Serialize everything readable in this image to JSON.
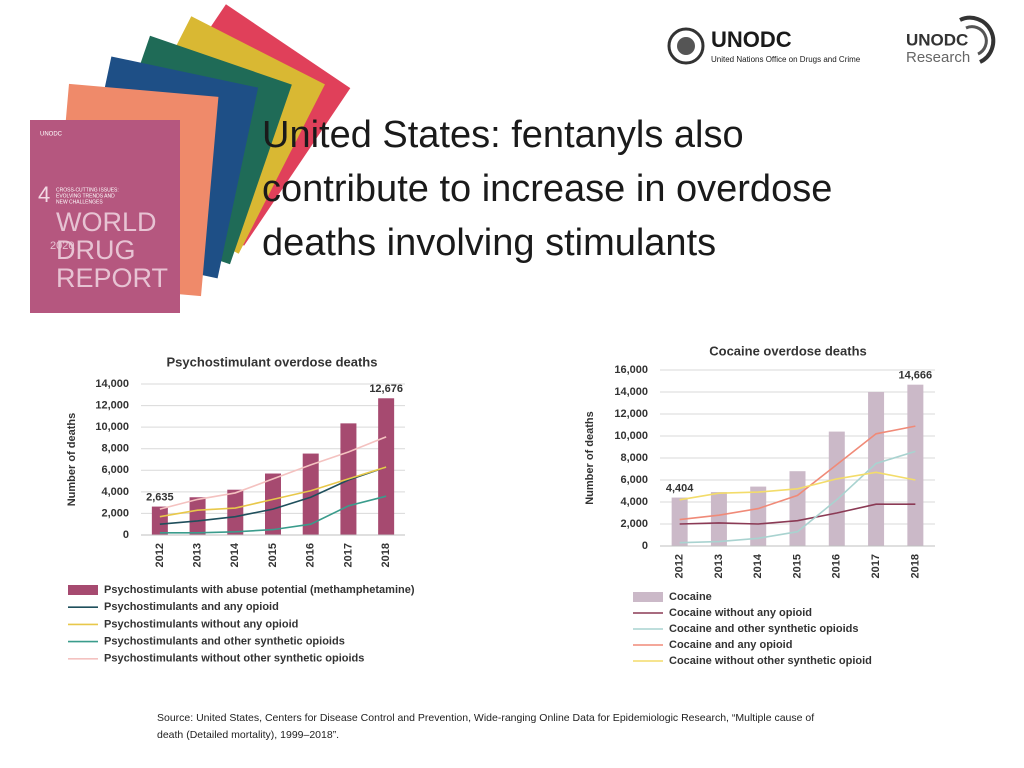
{
  "logos": {
    "unodc": "UNODC",
    "unodc_full": "United Nations Office on Drugs and Crime",
    "research_top": "UNODC",
    "research_bottom": "Research"
  },
  "cover": {
    "number": "4",
    "subtitle": [
      "CROSS-CUTTING ISSUES:",
      "EVOLVING TRENDS AND",
      "NEW CHALLENGES"
    ],
    "year": "2020",
    "title": [
      "WORLD",
      "DRUG",
      "REPORT"
    ],
    "brand": "UNODC"
  },
  "title_lines": [
    "United States: fentanyls also",
    "contribute to increase in overdose",
    "deaths involving stimulants"
  ],
  "source_lines": [
    "Source: United States, Centers for Disease Control and Prevention, Wide-ranging Online Data for Epidemiologic Research, “Multiple cause of",
    "death (Detailed mortality), 1999–2018”."
  ],
  "chart_data": [
    {
      "type": "bar",
      "title": "Psychostimulant overdose deaths",
      "ylabel": "Number of deaths",
      "categories": [
        "2012",
        "2013",
        "2014",
        "2015",
        "2016",
        "2017",
        "2018"
      ],
      "series": [
        {
          "name": "Psychostimulants with abuse potential (methamphetamine)",
          "type": "bar",
          "color": "#a64a70",
          "values": [
            2635,
            3500,
            4200,
            5700,
            7550,
            10350,
            12676
          ],
          "value_labels": [
            "2,635",
            null,
            null,
            null,
            null,
            null,
            "12,676"
          ]
        },
        {
          "name": "Psychostimulants and any opioid",
          "type": "line",
          "color": "#1f4f5c",
          "values": [
            1000,
            1300,
            1700,
            2400,
            3500,
            5100,
            6300
          ]
        },
        {
          "name": "Psychostimulants without any opioid",
          "type": "line",
          "color": "#e8c84a",
          "values": [
            1700,
            2300,
            2500,
            3300,
            4100,
            5200,
            6300
          ]
        },
        {
          "name": "Psychostimulants and other synthetic opioids",
          "type": "line",
          "color": "#3a9c8c",
          "values": [
            200,
            200,
            300,
            500,
            1000,
            2700,
            3600
          ]
        },
        {
          "name": "Psychostimulants without other synthetic opioids",
          "type": "line",
          "color": "#f4c2c0",
          "values": [
            2400,
            3300,
            3900,
            5200,
            6500,
            7700,
            9100
          ]
        }
      ],
      "ylim": [
        0,
        14000
      ],
      "yticks": [
        0,
        {
          "value": 2000,
          "label": "2,000"
        },
        {
          "value": 4000,
          "label": "4,000"
        },
        {
          "value": 6000,
          "label": "6,000"
        },
        {
          "value": 8000,
          "label": "8,000"
        },
        {
          "value": 10000,
          "label": "10,000"
        },
        {
          "value": 12000,
          "label": "12,000"
        },
        {
          "value": 14000,
          "label": "14,000"
        }
      ],
      "grid": true
    },
    {
      "type": "bar",
      "title": "Cocaine overdose deaths",
      "ylabel": "Number of deaths",
      "categories": [
        "2012",
        "2013",
        "2014",
        "2015",
        "2016",
        "2017",
        "2018"
      ],
      "series": [
        {
          "name": "Cocaine",
          "type": "bar",
          "color": "#cbb9c8",
          "values": [
            4404,
            4900,
            5400,
            6800,
            10400,
            14000,
            14666
          ],
          "value_labels": [
            "4,404",
            null,
            null,
            null,
            null,
            null,
            "14,666"
          ]
        },
        {
          "name": "Cocaine without any opioid",
          "type": "line",
          "color": "#8b3a55",
          "values": [
            2000,
            2100,
            2000,
            2300,
            3000,
            3800,
            3800
          ]
        },
        {
          "name": "Cocaine and other synthetic opioids",
          "type": "line",
          "color": "#a9d3d0",
          "values": [
            300,
            400,
            700,
            1300,
            4200,
            7500,
            8600
          ]
        },
        {
          "name": "Cocaine  and any opioid",
          "type": "line",
          "color": "#f08a78",
          "values": [
            2400,
            2800,
            3400,
            4600,
            7400,
            10200,
            10900
          ]
        },
        {
          "name": "Cocaine without other synthetic opioid",
          "type": "line",
          "color": "#f3dc6a",
          "values": [
            4200,
            4800,
            4900,
            5200,
            6100,
            6700,
            6000
          ]
        }
      ],
      "ylim": [
        0,
        16000
      ],
      "yticks": [
        0,
        {
          "value": 2000,
          "label": "2,000"
        },
        {
          "value": 4000,
          "label": "4,000"
        },
        {
          "value": 6000,
          "label": "6,000"
        },
        {
          "value": 8000,
          "label": "8,000"
        },
        {
          "value": 10000,
          "label": "10,000"
        },
        {
          "value": 12000,
          "label": "12,000"
        },
        {
          "value": 14000,
          "label": "14,000"
        },
        {
          "value": 16000,
          "label": "16,000"
        }
      ],
      "grid": true
    }
  ]
}
